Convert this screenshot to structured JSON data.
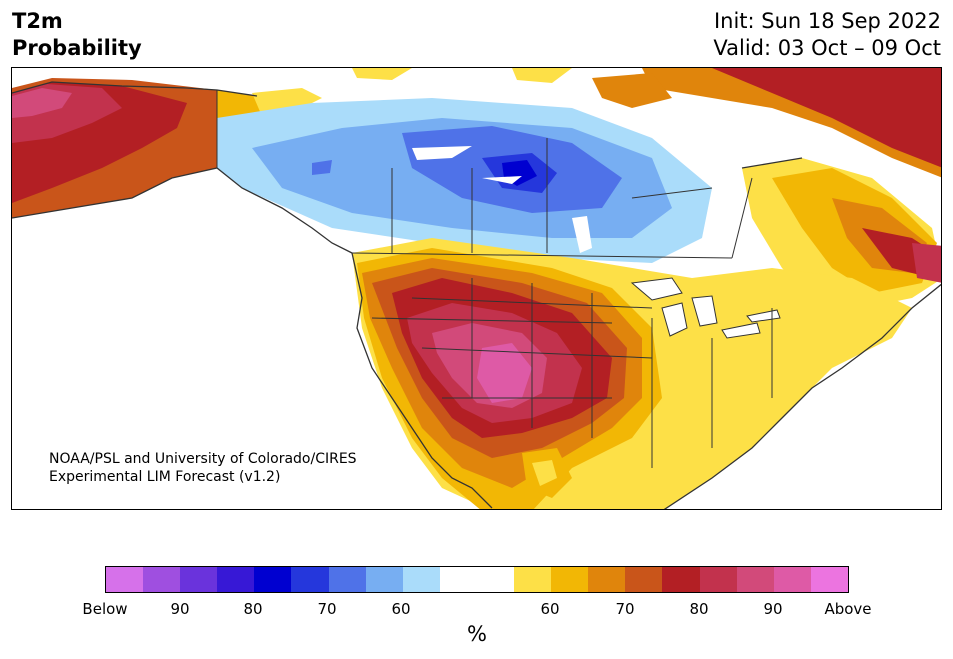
{
  "header": {
    "title_line1": "T2m",
    "title_line2": "Probability",
    "init": "Init: Sun 18 Sep 2022",
    "valid": "Valid: 03 Oct – 09 Oct"
  },
  "credit": {
    "line1": "NOAA/PSL and University of Colorado/CIRES",
    "line2": "Experimental LIM Forecast (v1.2)"
  },
  "colorbar": {
    "colors": [
      "#d671ea",
      "#9f4fe0",
      "#6a33dc",
      "#3718d6",
      "#0000d0",
      "#2537dc",
      "#4f72e8",
      "#77aef2",
      "#aadcfa",
      "#ffffff",
      "#ffffff",
      "#fde047",
      "#f2b705",
      "#e0850c",
      "#c9551a",
      "#b31f24",
      "#c2324d",
      "#d24a7a",
      "#de5aa6",
      "#ec74e0"
    ],
    "ticks": [
      "Below",
      "90",
      "80",
      "70",
      "60",
      "60",
      "70",
      "80",
      "90",
      "Above"
    ],
    "unit": "%"
  },
  "map": {
    "region": "North America",
    "variable": "2-meter temperature probability",
    "regions": [
      {
        "name": "alaska-warm",
        "category": "80"
      },
      {
        "name": "western-canada-cold",
        "category": "70 below"
      },
      {
        "name": "central-canada-cold-core",
        "category": "80 below"
      },
      {
        "name": "southwest-us-warm",
        "category": "90 above"
      },
      {
        "name": "eastern-us-warm",
        "category": "60"
      },
      {
        "name": "greenland-warm",
        "category": "80"
      },
      {
        "name": "newfoundland-warm",
        "category": "90"
      }
    ]
  }
}
